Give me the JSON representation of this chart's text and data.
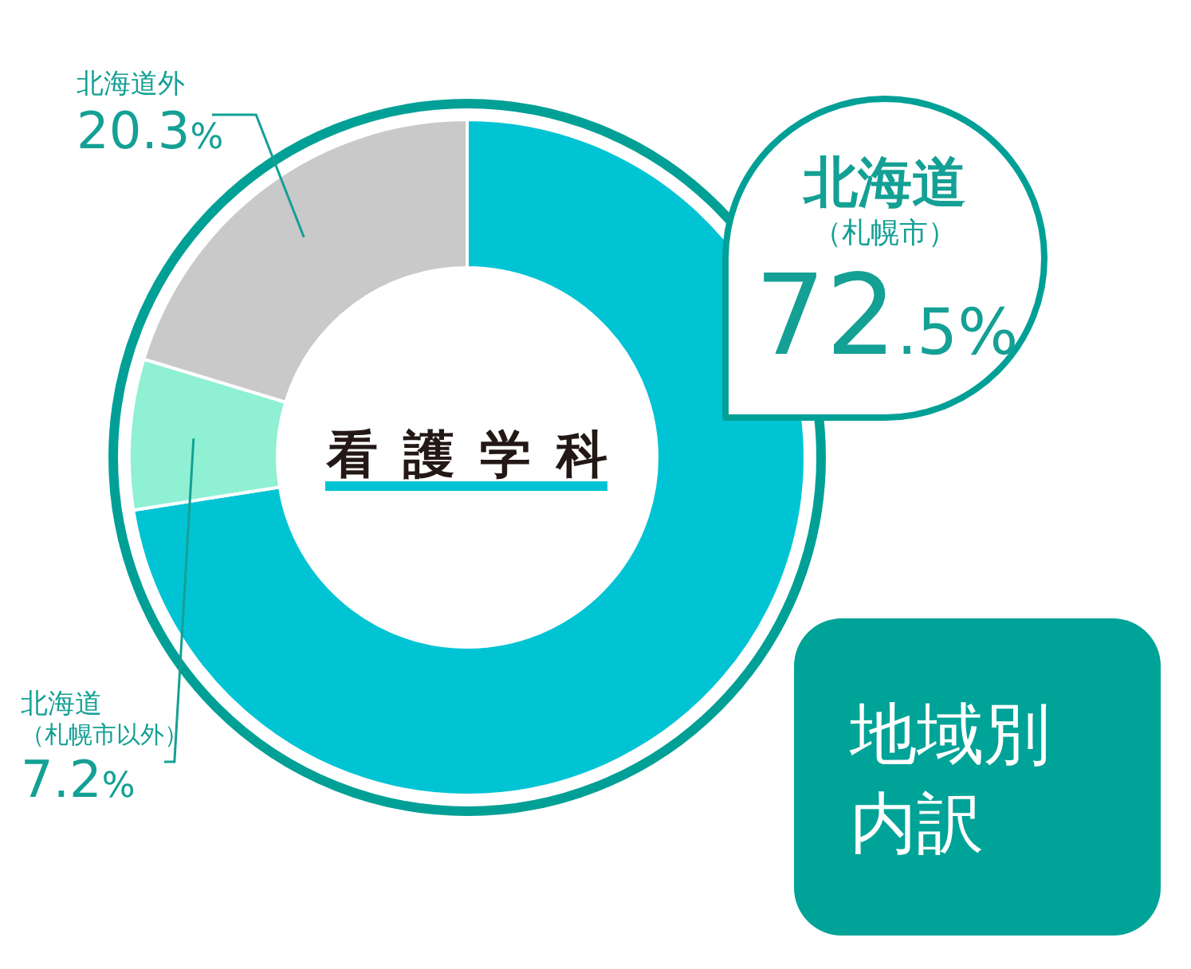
{
  "chart_data": {
    "type": "donut",
    "title": "看護学科",
    "subtitle": "地域別内訳",
    "categories": [
      "北海道（札幌市）",
      "北海道（札幌市以外）",
      "北海道外"
    ],
    "values": [
      72.5,
      7.2,
      20.3
    ],
    "colors": [
      "#00c4d4",
      "#8ff0d3",
      "#c9c9c9"
    ],
    "value_labels": [
      "72.5%",
      "7.2%",
      "20.3%"
    ]
  }
}
